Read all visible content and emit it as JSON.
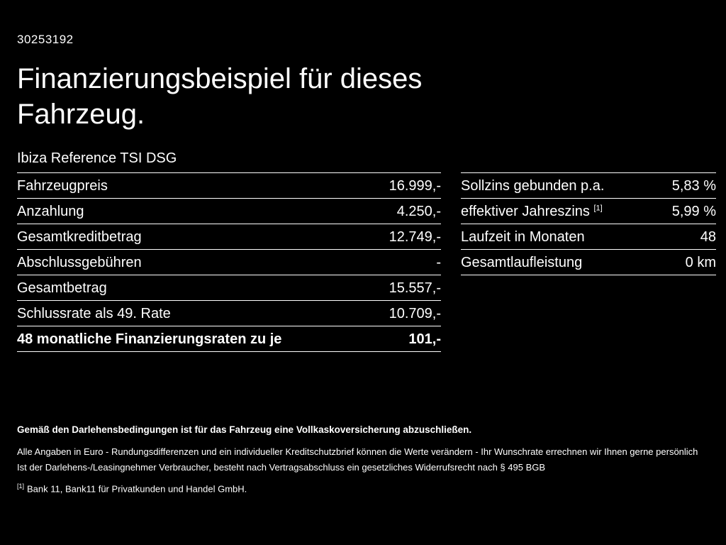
{
  "page": {
    "id_number": "30253192",
    "title_line1": "Finanzierungsbeispiel für dieses",
    "title_line2": "Fahrzeug.",
    "subtitle": "Ibiza Reference TSI DSG"
  },
  "left_table": {
    "rows": [
      {
        "label": "Fahrzeugpreis",
        "value": "16.999,-"
      },
      {
        "label": "Anzahlung",
        "value": "4.250,-"
      },
      {
        "label": "Gesamtkreditbetrag",
        "value": "12.749,-"
      },
      {
        "label": "Abschlussgebühren",
        "value": "-"
      },
      {
        "label": "Gesamtbetrag",
        "value": "15.557,-"
      },
      {
        "label": "Schlussrate als 49. Rate",
        "value": "10.709,-"
      },
      {
        "label": "48 monatliche Finanzierungsraten zu je",
        "value": "101,-"
      }
    ]
  },
  "right_table": {
    "rows": [
      {
        "label": "Sollzins gebunden p.a.",
        "sup": "",
        "value": "5,83 %"
      },
      {
        "label": "effektiver Jahreszins",
        "sup": "[1]",
        "value": "5,99 %"
      },
      {
        "label": "Laufzeit in Monaten",
        "sup": "",
        "value": "48"
      },
      {
        "label": "Gesamtlaufleistung",
        "sup": "",
        "value": "0 km"
      }
    ]
  },
  "footnotes": {
    "bold_note": "Gemäß den Darlehensbedingungen ist für das Fahrzeug eine Vollkaskoversicherung abzuschließen.",
    "line1": "Alle Angaben in Euro - Rundungsdifferenzen und ein individueller Kreditschutzbrief können die Werte verändern - Ihr Wunschrate errechnen wir Ihnen gerne persönlich",
    "line2": "Ist der Darlehens-/Leasingnehmer Verbraucher, besteht nach Vertragsabschluss ein gesetzliches Widerrufsrecht nach § 495 BGB",
    "ref_marker": "[1]",
    "ref_text": "Bank 11, Bank11 für Privatkunden und Handel GmbH."
  }
}
